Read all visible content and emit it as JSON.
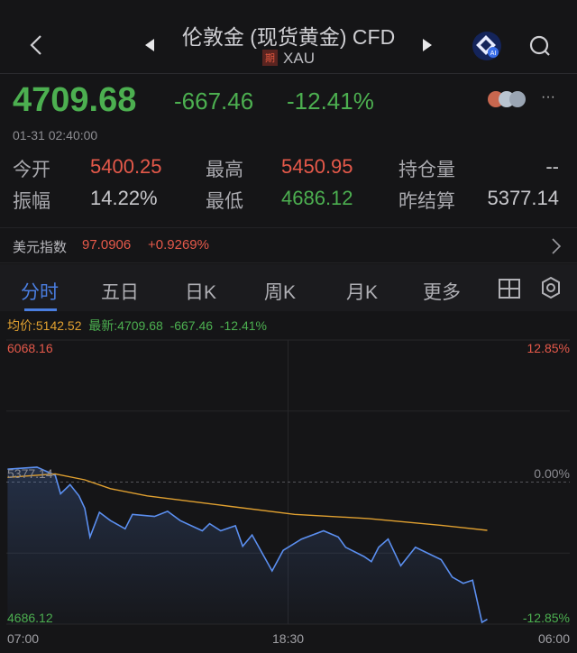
{
  "header": {
    "title": "伦敦金 (现货黄金) CFD",
    "badge": "期",
    "symbol": "XAU",
    "icons": [
      "back-chevron-icon",
      "prev-triangle-icon",
      "next-triangle-icon",
      "ai-assistant-icon",
      "search-icon"
    ]
  },
  "quote": {
    "price": "4709.68",
    "change": "-667.46",
    "change_pct": "-12.41%",
    "timestamp": "01-31 02:40:00",
    "more": "···"
  },
  "stats": [
    [
      {
        "label": "今开",
        "value": "5400.25",
        "color": "#e5594a"
      },
      {
        "label": "最高",
        "value": "5450.95",
        "color": "#e5594a"
      },
      {
        "label": "持仓量",
        "value": "--",
        "color": "#c8c8cc"
      }
    ],
    [
      {
        "label": "振幅",
        "value": "14.22%",
        "color": "#c8c8cc"
      },
      {
        "label": "最低",
        "value": "4686.12",
        "color": "#4caf50"
      },
      {
        "label": "昨结算",
        "value": "5377.14",
        "color": "#c8c8cc"
      }
    ]
  ],
  "dxy": {
    "label": "美元指数",
    "value": "97.0906",
    "change": "+0.9269%"
  },
  "tabs": [
    {
      "label": "分时",
      "active": true
    },
    {
      "label": "五日"
    },
    {
      "label": "日K"
    },
    {
      "label": "周K"
    },
    {
      "label": "月K"
    },
    {
      "label": "更多"
    }
  ],
  "chart_info": {
    "avg": "均价:5142.52",
    "latest": "最新:4709.68",
    "change": "-667.46",
    "pct": "-12.41%"
  },
  "chart_data": {
    "type": "line",
    "y_max_label": "6068.16",
    "y_min_label": "4686.12",
    "y_ref_label": "5377.14",
    "pct_max_label": "12.85%",
    "pct_ref_label": "0.00%",
    "pct_min_label": "-12.85%",
    "x_labels": [
      "07:00",
      "18:30",
      "06:00"
    ],
    "ylim": [
      4686.12,
      6068.16
    ],
    "ref": 5377.14,
    "colors": {
      "price": "#5b8ff0",
      "avg": "#e0a030"
    },
    "series": [
      {
        "key": "price",
        "points": [
          [
            "07:03",
            5440
          ],
          [
            "08:15",
            5450
          ],
          [
            "09:00",
            5410
          ],
          [
            "09:13",
            5320
          ],
          [
            "09:36",
            5365
          ],
          [
            "09:58",
            5310
          ],
          [
            "10:12",
            5250
          ],
          [
            "10:25",
            5110
          ],
          [
            "10:48",
            5230
          ],
          [
            "11:15",
            5190
          ],
          [
            "11:51",
            5150
          ],
          [
            "12:09",
            5220
          ],
          [
            "13:03",
            5210
          ],
          [
            "13:35",
            5235
          ],
          [
            "14:06",
            5190
          ],
          [
            "15:00",
            5140
          ],
          [
            "15:18",
            5175
          ],
          [
            "15:45",
            5140
          ],
          [
            "16:21",
            5165
          ],
          [
            "16:39",
            5065
          ],
          [
            "17:02",
            5120
          ],
          [
            "17:51",
            4945
          ],
          [
            "18:18",
            5045
          ],
          [
            "19:03",
            5100
          ],
          [
            "19:57",
            5140
          ],
          [
            "20:33",
            5110
          ],
          [
            "20:51",
            5060
          ],
          [
            "21:36",
            5015
          ],
          [
            "21:54",
            4990
          ],
          [
            "22:12",
            5060
          ],
          [
            "22:35",
            5100
          ],
          [
            "23:06",
            4970
          ],
          [
            "23:42",
            5060
          ],
          [
            "00:45",
            5000
          ],
          [
            "01:12",
            4915
          ],
          [
            "01:39",
            4885
          ],
          [
            "02:02",
            4900
          ],
          [
            "02:25",
            4695
          ],
          [
            "02:38",
            4709.68
          ]
        ]
      },
      {
        "key": "avg",
        "points": [
          [
            "07:03",
            5400
          ],
          [
            "09:00",
            5417
          ],
          [
            "10:12",
            5388
          ],
          [
            "11:15",
            5345
          ],
          [
            "12:45",
            5310
          ],
          [
            "15:45",
            5265
          ],
          [
            "18:46",
            5220
          ],
          [
            "21:46",
            5200
          ],
          [
            "00:45",
            5167
          ],
          [
            "02:38",
            5142.52
          ]
        ]
      }
    ]
  }
}
